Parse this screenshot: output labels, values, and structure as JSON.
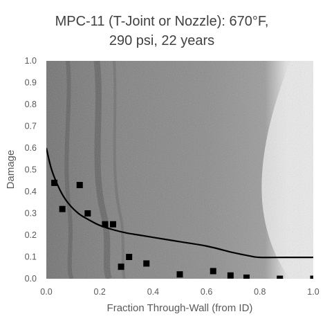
{
  "chart_data": {
    "type": "scatter",
    "title_lines": [
      "MPC-11 (T-Joint or Nozzle): 670°F,",
      "290 psi, 22 years"
    ],
    "xlabel": "Fraction Through-Wall (from ID)",
    "ylabel": "Damage",
    "xlim": [
      0,
      1
    ],
    "ylim": [
      0,
      1
    ],
    "x_ticks": [
      "0.0",
      "0.2",
      "0.4",
      "0.6",
      "0.8",
      "1.0"
    ],
    "y_ticks": [
      "0.0",
      "0.1",
      "0.2",
      "0.3",
      "0.4",
      "0.5",
      "0.6",
      "0.7",
      "0.8",
      "0.9",
      "1.0"
    ],
    "background": "micrograph",
    "grid": false,
    "series": [
      {
        "kind": "points",
        "marker": "square",
        "color": "#000000",
        "x": [
          0.03,
          0.06,
          0.125,
          0.155,
          0.22,
          0.25,
          0.28,
          0.31,
          0.375,
          0.5,
          0.625,
          0.69,
          0.75,
          0.875,
          1.0
        ],
        "y": [
          0.44,
          0.32,
          0.43,
          0.3,
          0.25,
          0.25,
          0.055,
          0.1,
          0.07,
          0.02,
          0.035,
          0.015,
          0.005,
          0.0,
          0.0
        ]
      },
      {
        "kind": "curve",
        "color": "#000000",
        "x": [
          0.0,
          0.02,
          0.05,
          0.08,
          0.12,
          0.16,
          0.2,
          0.25,
          0.3,
          0.35,
          0.4,
          0.5,
          0.6,
          0.7,
          0.76,
          0.8,
          0.9,
          1.0
        ],
        "y": [
          0.6,
          0.5,
          0.41,
          0.35,
          0.3,
          0.27,
          0.245,
          0.225,
          0.21,
          0.2,
          0.19,
          0.17,
          0.15,
          0.12,
          0.105,
          0.098,
          0.098,
          0.098
        ]
      }
    ]
  }
}
